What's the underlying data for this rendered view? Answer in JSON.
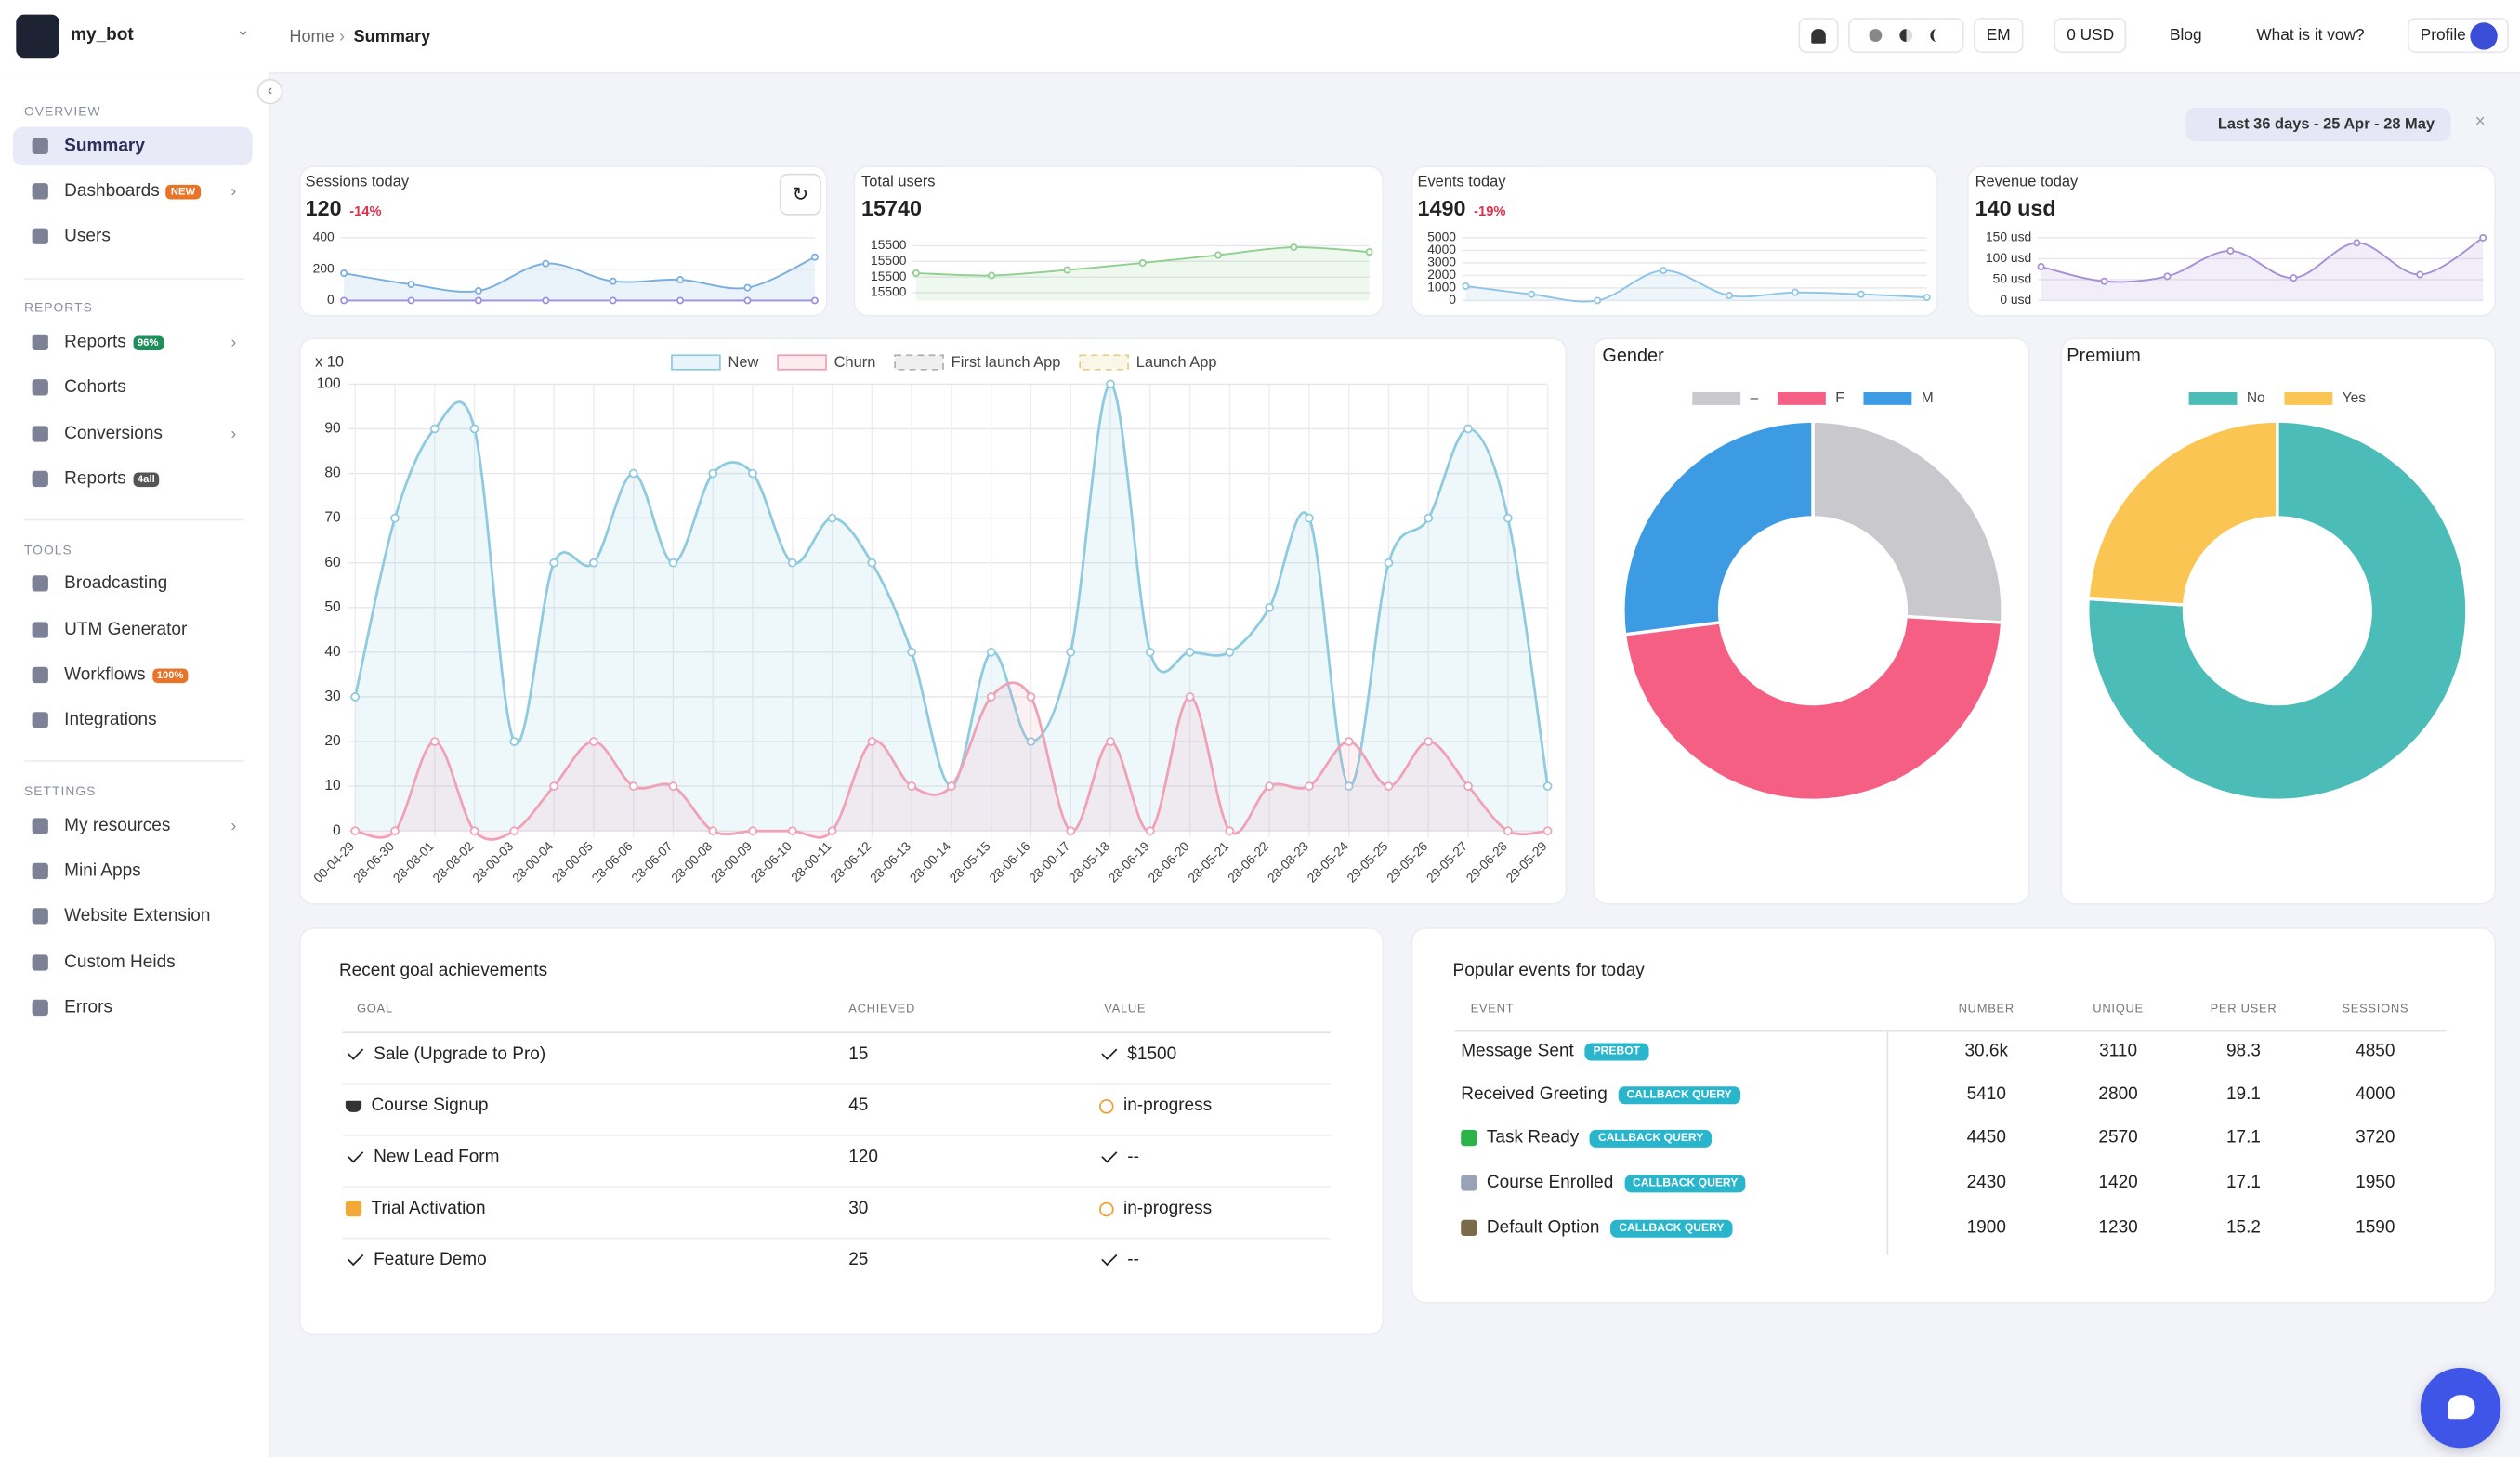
{
  "sidebar": {
    "bot": "my_bot",
    "sections": [
      {
        "title": "OVERVIEW",
        "items": [
          {
            "label": "Summary"
          },
          {
            "label": "Dashboards",
            "badge": "NEW"
          },
          {
            "label": "Users"
          }
        ]
      },
      {
        "title": "REPORTS",
        "items": [
          {
            "label": "Reports",
            "badge": "96%"
          },
          {
            "label": "Cohorts"
          },
          {
            "label": "Conversions"
          },
          {
            "label": "Reports",
            "badge": "4all"
          }
        ]
      },
      {
        "title": "TOOLS",
        "items": [
          {
            "label": "Broadcasting"
          },
          {
            "label": "UTM Generator"
          },
          {
            "label": "Workflows",
            "badge": "100%"
          },
          {
            "label": "Integrations"
          }
        ]
      },
      {
        "title": "SETTINGS",
        "items": [
          {
            "label": "My resources"
          },
          {
            "label": "Mini Apps"
          },
          {
            "label": "Website Extension"
          },
          {
            "label": "Custom Heids"
          },
          {
            "label": "Errors"
          }
        ]
      }
    ]
  },
  "header": {
    "breadcrumb": [
      "Home",
      "Summary"
    ],
    "buttons": [
      "EM",
      "0 USD",
      "Blog",
      "What is it vow?",
      "Profile"
    ],
    "date_range": "Last 36 days - 25 Apr - 28 May"
  },
  "chart_data": [
    {
      "type": "line",
      "title": "Sessions today",
      "value": "120",
      "change": "-14%",
      "ylim": [
        0,
        400
      ],
      "yticks": [
        0,
        200,
        400
      ],
      "grid": true,
      "series": [
        {
          "color": "#7aaee0",
          "fill": true,
          "values": [
            174,
            103,
            62,
            236,
            123,
            133,
            82,
            277
          ]
        },
        {
          "color": "#9b8fe0",
          "values": [
            0,
            0,
            0,
            0,
            0,
            0,
            0,
            0
          ]
        }
      ]
    },
    {
      "type": "line",
      "title": "Total users",
      "value": "15740",
      "ylim": [
        15460,
        15540
      ],
      "yticks": [
        {
          "value": 15470,
          "label": "15500"
        },
        {
          "value": 15490,
          "label": "15500"
        },
        {
          "value": 15510,
          "label": "15500"
        },
        {
          "value": 15530,
          "label": "15500"
        }
      ],
      "grid": true,
      "series": [
        {
          "color": "#8fcf8f",
          "fill": true,
          "values": [
            15495,
            15492,
            15499,
            15508,
            15518,
            15528,
            15522
          ]
        }
      ]
    },
    {
      "type": "line",
      "title": "Events today",
      "value": "1490",
      "change": "-19%",
      "ylim": [
        0,
        5000
      ],
      "yticks": [
        0,
        1000,
        2000,
        3000,
        4000,
        5000
      ],
      "grid": true,
      "series": [
        {
          "color": "#8ec5e6",
          "fill": true,
          "values": [
            1150,
            500,
            0,
            2400,
            400,
            650,
            500,
            250
          ]
        }
      ]
    },
    {
      "type": "line",
      "title": "Revenue today",
      "value": "140 usd",
      "ylim": [
        0,
        150
      ],
      "yticks": [
        {
          "value": 0,
          "label": "0 usd"
        },
        {
          "value": 50,
          "label": "50 usd"
        },
        {
          "value": 100,
          "label": "100 usd"
        },
        {
          "value": 150,
          "label": "150 usd"
        }
      ],
      "grid": true,
      "series": [
        {
          "color": "#a58fd6",
          "fill": true,
          "values": [
            81,
            46,
            58,
            119,
            54,
            138,
            62,
            150
          ]
        }
      ]
    },
    {
      "type": "line",
      "ylabel": "x 10",
      "grid": true,
      "legend": true,
      "ylim": [
        0,
        100
      ],
      "yticks": [
        0,
        10,
        20,
        30,
        40,
        50,
        60,
        70,
        80,
        90,
        100
      ],
      "categories": [
        "00-04-29",
        "28-06-30",
        "28-08-01",
        "28-08-02",
        "28-00-03",
        "28-00-04",
        "28-00-05",
        "28-06-06",
        "28-06-07",
        "28-00-08",
        "28-00-09",
        "28-06-10",
        "28-00-11",
        "28-06-12",
        "28-06-13",
        "28-00-14",
        "28-05-15",
        "28-06-16",
        "28-00-17",
        "28-05-18",
        "28-06-19",
        "28-06-20",
        "28-05-21",
        "28-06-22",
        "28-08-23",
        "28-05-24",
        "29-05-25",
        "29-05-26",
        "29-05-27",
        "29-06-28",
        "29-05-29"
      ],
      "series": [
        {
          "name": "New",
          "color": "#8ecae0",
          "fill": true,
          "values": [
            30,
            70,
            90,
            90,
            20,
            60,
            60,
            80,
            60,
            80,
            80,
            60,
            70,
            60,
            40,
            10,
            40,
            20,
            40,
            100,
            40,
            40,
            40,
            50,
            70,
            10,
            60,
            70,
            90,
            70,
            10
          ]
        },
        {
          "name": "Churn",
          "color": "#f0a1b5",
          "fill": true,
          "values": [
            0,
            0,
            20,
            0,
            0,
            10,
            20,
            10,
            10,
            0,
            0,
            0,
            0,
            20,
            10,
            10,
            30,
            30,
            0,
            20,
            0,
            30,
            0,
            10,
            10,
            20,
            10,
            20,
            10,
            0,
            0
          ]
        },
        {
          "name": "First launch App",
          "color": "#b0b0b0",
          "dash": true,
          "values": [
            null,
            null,
            null,
            null,
            null,
            null,
            null,
            null,
            null,
            null,
            null,
            null,
            null,
            null,
            null,
            null,
            null,
            null,
            null,
            null,
            null,
            null,
            null,
            null,
            null,
            null,
            null,
            null,
            null,
            null,
            null
          ]
        },
        {
          "name": "Launch App",
          "color": "#e5d08a",
          "dash": true,
          "values": [
            null,
            null,
            null,
            null,
            null,
            null,
            null,
            null,
            null,
            null,
            null,
            null,
            null,
            null,
            null,
            null,
            null,
            null,
            null,
            null,
            null,
            null,
            null,
            null,
            null,
            null,
            null,
            null,
            null,
            null,
            null
          ]
        }
      ]
    },
    {
      "type": "doughnut",
      "title": "Gender",
      "categories": [
        "–",
        "F",
        "M"
      ],
      "values": [
        26,
        47,
        27
      ],
      "colors": [
        "#c9c9cd",
        "#f55f83",
        "#3d9be3"
      ]
    },
    {
      "type": "doughnut",
      "title": "Premium",
      "categories": [
        "No",
        "Yes"
      ],
      "values": [
        76,
        24
      ],
      "colors": [
        "#4bbcb8",
        "#fac553"
      ]
    }
  ],
  "goals": {
    "title": "Recent goal achievements",
    "columns": [
      "GOAL",
      "ACHIEVED",
      "VALUE"
    ],
    "rows": [
      [
        "Sale (Upgrade to Pro)",
        15,
        "$1500"
      ],
      [
        "Course Signup",
        45,
        "in-progress"
      ],
      [
        "New Lead Form",
        120,
        "--"
      ],
      [
        "Trial Activation",
        30,
        "in-progress"
      ],
      [
        "Feature Demo",
        25,
        "--"
      ]
    ]
  },
  "events": {
    "title": "Popular events for today",
    "columns": [
      "EVENT",
      "NUMBER",
      "UNIQUE",
      "PER USER",
      "SESSIONS"
    ],
    "rows": [
      [
        "Message Sent",
        "PREBOT",
        "30.6k",
        3110,
        98.3,
        4850
      ],
      [
        "Received Greeting",
        "CALLBACK QUERY",
        5410,
        2800,
        19.1,
        4000
      ],
      [
        "Task Ready",
        "CALLBACK QUERY",
        4450,
        2570,
        17.1,
        3720
      ],
      [
        "Course Enrolled",
        "CALLBACK QUERY",
        2430,
        1420,
        17.1,
        1950
      ],
      [
        "Default Option",
        "CALLBACK QUERY",
        1900,
        1230,
        15.2,
        1590
      ]
    ]
  }
}
